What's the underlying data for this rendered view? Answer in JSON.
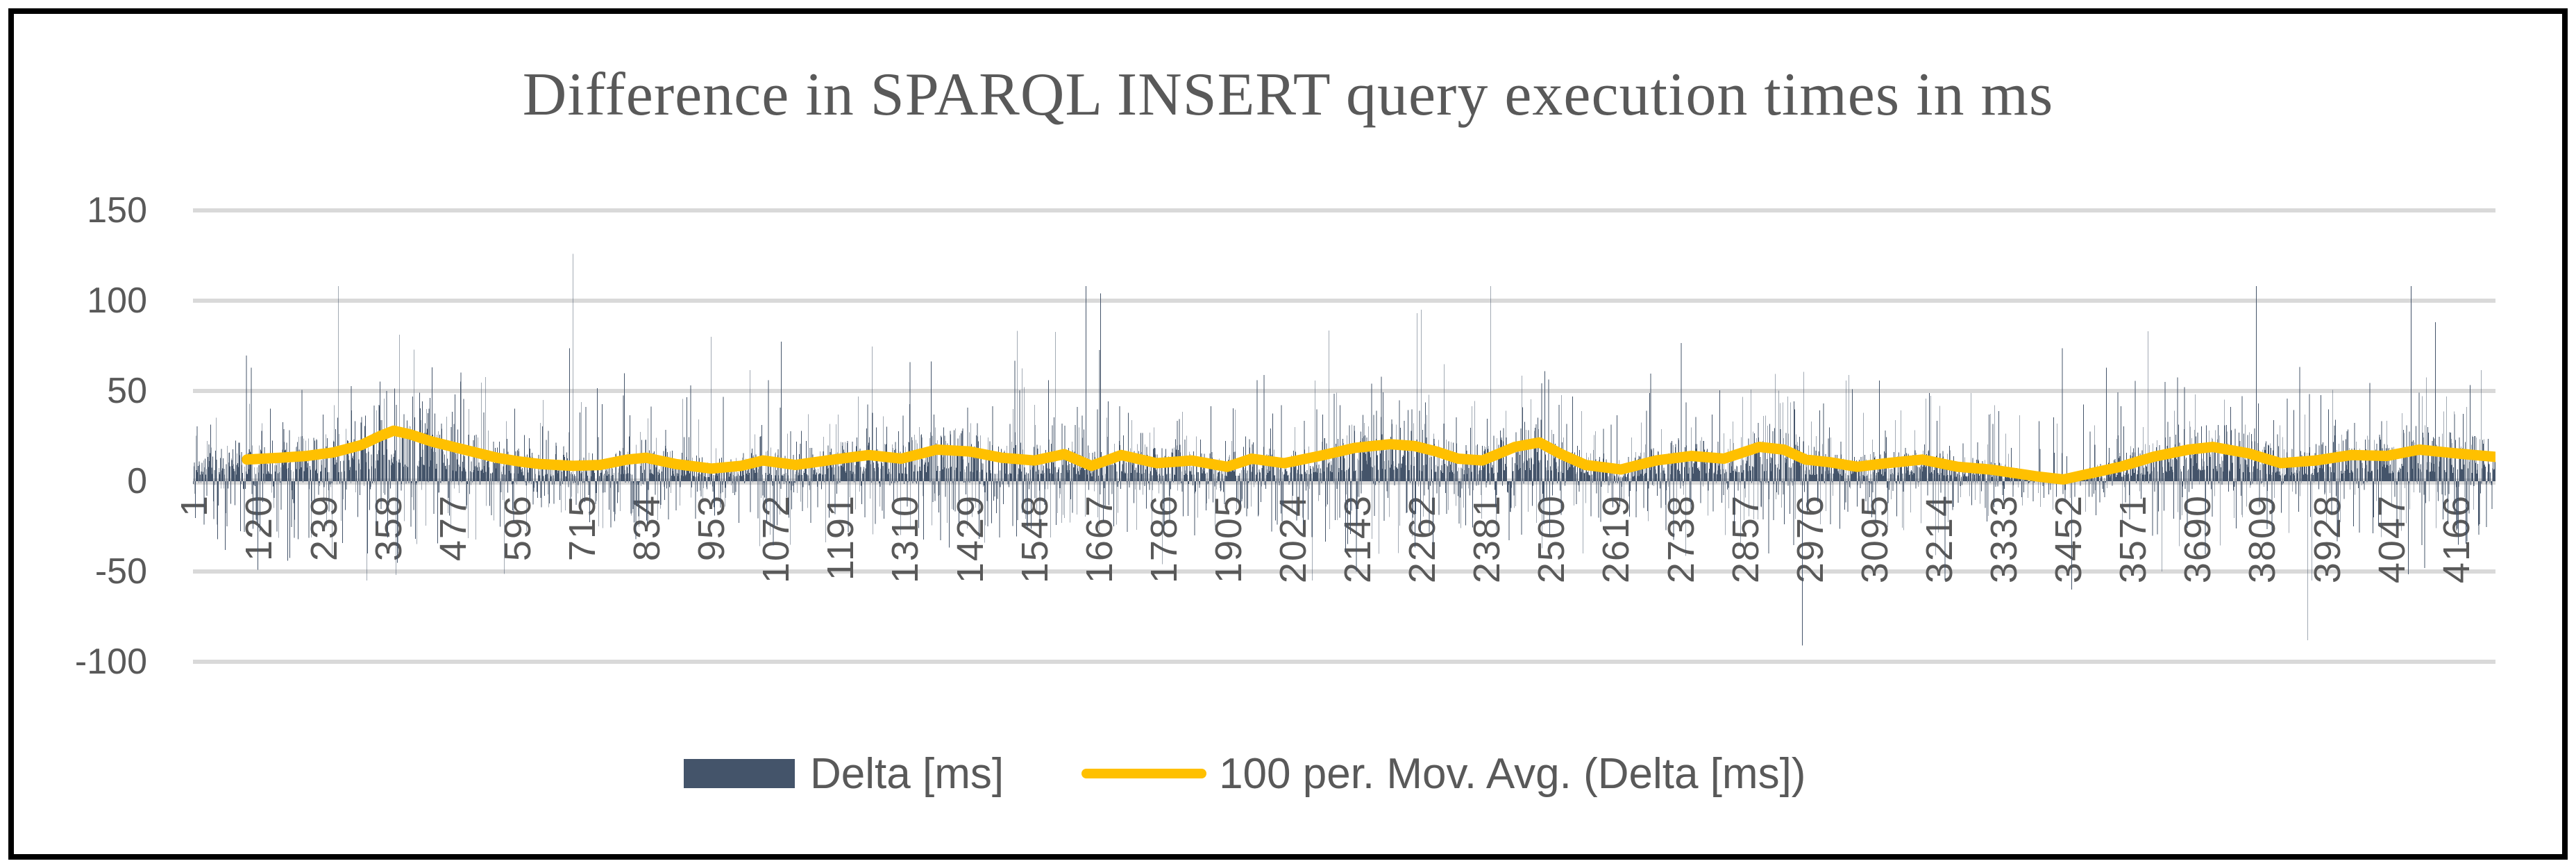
{
  "chart_data": {
    "type": "bar",
    "title": "Difference in SPARQL INSERT query execution times in ms",
    "x": {
      "tick_labels": [
        "1",
        "120",
        "239",
        "358",
        "477",
        "596",
        "715",
        "834",
        "953",
        "1072",
        "1191",
        "1310",
        "1429",
        "1548",
        "1667",
        "1786",
        "1905",
        "2024",
        "2143",
        "2262",
        "2381",
        "2500",
        "2619",
        "2738",
        "2857",
        "2976",
        "3095",
        "3214",
        "3333",
        "3452",
        "3571",
        "3690",
        "3809",
        "3928",
        "4047",
        "4166"
      ],
      "tick_step": 119,
      "category_count": 4240,
      "label_rotation_degrees": 90
    },
    "y": {
      "tick_labels": [
        "150",
        "100",
        "50",
        "0",
        "-50",
        "-100"
      ],
      "min": -100,
      "max": 150,
      "grid": true,
      "gridline_color": "#d9d9d9"
    },
    "series": [
      {
        "name": "Delta [ms]",
        "type": "bar",
        "color": "#44546A",
        "value_summary": {
          "typical_range_ms": [
            -25,
            50
          ],
          "frequent_spike_range_ms": [
            50,
            85
          ],
          "max_spike_ms": 126,
          "min_spike_ms": -91,
          "negative_share": 0.27
        },
        "render_seed": 1337,
        "notable_points": [
          [
            60,
            -38
          ],
          [
            120,
            -49
          ],
          [
            175,
            -44
          ],
          [
            268,
            108
          ],
          [
            700,
            126
          ],
          [
            955,
            80
          ],
          [
            1645,
            108
          ],
          [
            1672,
            104
          ],
          [
            1786,
            -46
          ],
          [
            2143,
            -50
          ],
          [
            2255,
            93
          ],
          [
            2262,
            95
          ],
          [
            2390,
            108
          ],
          [
            2560,
            -40
          ],
          [
            2964,
            -91
          ],
          [
            3460,
            -60
          ],
          [
            3800,
            108
          ],
          [
            3895,
            -88
          ],
          [
            4085,
            108
          ],
          [
            4110,
            -48
          ],
          [
            4130,
            88
          ]
        ]
      },
      {
        "name": "100 per. Mov. Avg. (Delta [ms])",
        "type": "line",
        "color": "#FFC000",
        "stroke_width": 15,
        "points": [
          [
            100,
            12
          ],
          [
            160,
            13
          ],
          [
            210,
            14
          ],
          [
            260,
            16
          ],
          [
            310,
            20
          ],
          [
            345,
            25
          ],
          [
            370,
            28
          ],
          [
            400,
            26
          ],
          [
            440,
            22
          ],
          [
            480,
            19
          ],
          [
            520,
            16
          ],
          [
            560,
            13
          ],
          [
            600,
            11
          ],
          [
            640,
            9.5
          ],
          [
            700,
            8.5
          ],
          [
            750,
            9
          ],
          [
            800,
            12
          ],
          [
            835,
            13
          ],
          [
            890,
            9.5
          ],
          [
            955,
            7
          ],
          [
            1010,
            8.5
          ],
          [
            1050,
            11.5
          ],
          [
            1110,
            9
          ],
          [
            1180,
            12
          ],
          [
            1245,
            14.5
          ],
          [
            1305,
            12.5
          ],
          [
            1370,
            17.5
          ],
          [
            1430,
            16.5
          ],
          [
            1490,
            13
          ],
          [
            1550,
            11.5
          ],
          [
            1605,
            15
          ],
          [
            1655,
            8.5
          ],
          [
            1710,
            14.5
          ],
          [
            1775,
            10
          ],
          [
            1840,
            11.5
          ],
          [
            1905,
            8
          ],
          [
            1950,
            12.5
          ],
          [
            2010,
            10
          ],
          [
            2075,
            14
          ],
          [
            2140,
            18.5
          ],
          [
            2205,
            20.5
          ],
          [
            2250,
            19.5
          ],
          [
            2290,
            16.5
          ],
          [
            2330,
            12.5
          ],
          [
            2375,
            11.5
          ],
          [
            2435,
            19
          ],
          [
            2480,
            21.5
          ],
          [
            2520,
            15
          ],
          [
            2565,
            9
          ],
          [
            2630,
            6.5
          ],
          [
            2695,
            11.5
          ],
          [
            2760,
            14
          ],
          [
            2820,
            12.5
          ],
          [
            2885,
            19
          ],
          [
            2930,
            17.5
          ],
          [
            2970,
            12
          ],
          [
            3015,
            10.5
          ],
          [
            3065,
            8
          ],
          [
            3120,
            10
          ],
          [
            3185,
            12
          ],
          [
            3250,
            8
          ],
          [
            3310,
            6.5
          ],
          [
            3355,
            4.5
          ],
          [
            3400,
            2.5
          ],
          [
            3445,
            1
          ],
          [
            3490,
            4
          ],
          [
            3550,
            8
          ],
          [
            3610,
            13.5
          ],
          [
            3675,
            17.5
          ],
          [
            3720,
            19
          ],
          [
            3785,
            15.5
          ],
          [
            3845,
            10
          ],
          [
            3910,
            11.5
          ],
          [
            3975,
            14.5
          ],
          [
            4040,
            14
          ],
          [
            4100,
            17.5
          ],
          [
            4165,
            15.5
          ],
          [
            4240,
            13.5
          ]
        ]
      }
    ],
    "legend": {
      "position": "bottom",
      "entries": [
        "Delta [ms]",
        "100 per. Mov. Avg. (Delta [ms])"
      ]
    }
  },
  "appearance": {
    "background_color": "#ffffff",
    "frame_border_color": "#000000",
    "text_color": "#595959",
    "title_color": "#595959"
  }
}
